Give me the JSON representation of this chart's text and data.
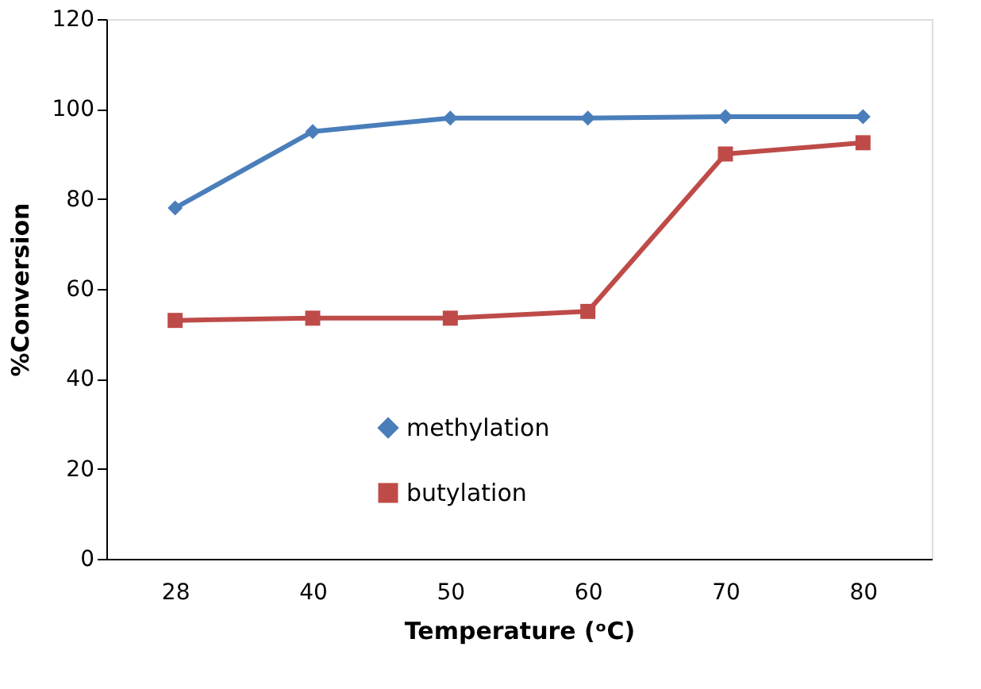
{
  "chart_data": {
    "type": "line",
    "xlabel": "Temperature (ᵒC)",
    "ylabel": "%Conversion",
    "categories": [
      "28",
      "40",
      "50",
      "60",
      "70",
      "80"
    ],
    "series": [
      {
        "name": "methylation",
        "color": "#4a7ebb",
        "marker": "diamond",
        "values": [
          78,
          95,
          98,
          98,
          98.3,
          98.3
        ]
      },
      {
        "name": "butylation",
        "color": "#be4b48",
        "marker": "square",
        "values": [
          53,
          53.5,
          53.5,
          55,
          90,
          92.5
        ]
      }
    ],
    "ylim": [
      0,
      120
    ],
    "yticks": [
      0,
      20,
      40,
      60,
      80,
      100,
      120
    ],
    "grid": false,
    "legend": "bottom",
    "line_style": "solid"
  }
}
